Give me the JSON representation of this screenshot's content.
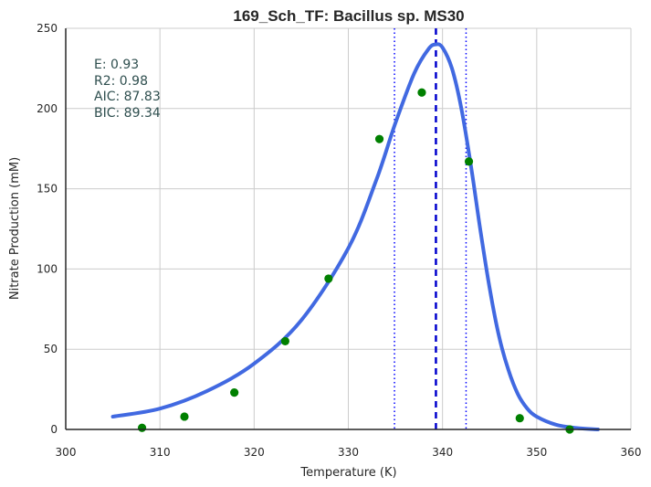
{
  "chart_data": {
    "type": "scatter",
    "title": "169_Sch_TF: Bacillus sp. MS30",
    "xlabel": "Temperature (K)",
    "ylabel": "Nitrate Production (mM)",
    "xlim": [
      300,
      360
    ],
    "ylim": [
      0,
      250
    ],
    "x_ticks": [
      300,
      310,
      320,
      330,
      340,
      350,
      360
    ],
    "y_ticks": [
      0,
      50,
      100,
      150,
      200,
      250
    ],
    "grid": true,
    "stats": [
      "E:  0.93",
      "R2:  0.98",
      "AIC: 87.83",
      "BIC: 89.34"
    ],
    "colors": {
      "points": "#008000",
      "fit": "#4169E1",
      "peak_line": "#0000CD",
      "bound_lines": "#0000FF",
      "grid": "#CCCCCC",
      "axis": "#262626",
      "stats": "#2F4F4F"
    },
    "series": [
      {
        "kind": "points",
        "x": [
          308.1,
          312.6,
          317.9,
          323.3,
          327.9,
          333.3,
          337.8,
          342.8,
          348.2,
          353.5
        ],
        "y": [
          1,
          8,
          23,
          55,
          94,
          181,
          210,
          167,
          7,
          0
        ]
      },
      {
        "kind": "fit",
        "x": [
          305.0,
          310.0,
          315.0,
          320.0,
          325.0,
          330.0,
          333.0,
          335.0,
          337.0,
          338.5,
          339.3,
          340.0,
          341.0,
          342.0,
          343.0,
          344.0,
          345.0,
          346.0,
          347.0,
          348.0,
          349.0,
          350.0,
          352.0,
          354.0,
          356.5
        ],
        "y": [
          8,
          13,
          24,
          41,
          68,
          113,
          156,
          191,
          222,
          237,
          240,
          238,
          225,
          200,
          165,
          125,
          88,
          58,
          37,
          22,
          13,
          8,
          3,
          1,
          0
        ]
      }
    ],
    "vertical_lines": [
      {
        "x": 339.3,
        "style": "dashed"
      },
      {
        "x": 334.9,
        "style": "dotted"
      },
      {
        "x": 342.5,
        "style": "dotted"
      }
    ]
  }
}
